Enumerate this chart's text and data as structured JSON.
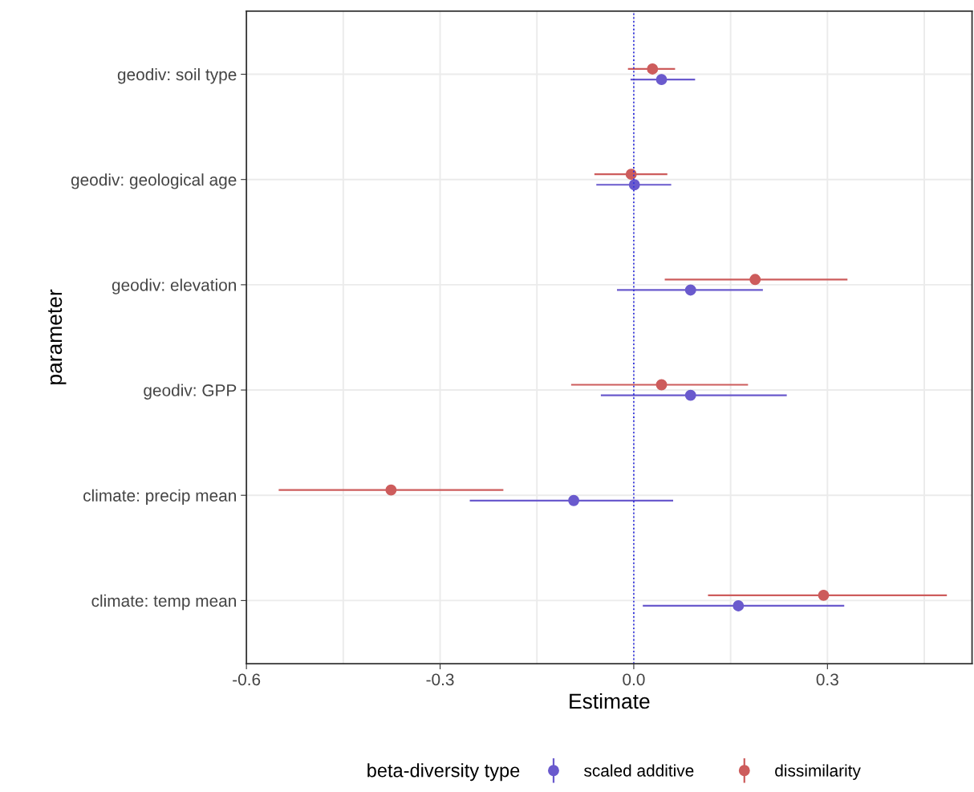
{
  "chart_data": {
    "type": "scatter",
    "orientation": "horizontal",
    "xlabel": "Estimate",
    "ylabel": "parameter",
    "legend_title": "beta-diversity type",
    "legend": "bottom",
    "grid": true,
    "marker": "circle",
    "categories": [
      "geodiv: soil type",
      "geodiv: geological age",
      "geodiv: elevation",
      "geodiv: GPP",
      "climate: precip mean",
      "climate: temp mean"
    ],
    "xlim": [
      -0.6,
      0.524
    ],
    "xticks": [
      -0.6,
      {
        "value": -0.45,
        "label": null
      },
      -0.3,
      {
        "value": -0.15,
        "label": null
      },
      {
        "value": 0,
        "label": "0.0"
      },
      {
        "value": 0.15,
        "label": null
      },
      0.3,
      {
        "value": 0.45,
        "label": null
      }
    ],
    "series": [
      {
        "name": "scaled additive",
        "color": "#6a5acd",
        "values": [
          0.043,
          0.001,
          0.088,
          0.088,
          -0.093,
          0.162
        ],
        "errors": [
          [
            -0.005,
            0.095
          ],
          [
            -0.058,
            0.058
          ],
          [
            -0.026,
            0.2
          ],
          [
            -0.051,
            0.237
          ],
          [
            -0.254,
            0.061
          ],
          [
            0.014,
            0.326
          ]
        ]
      },
      {
        "name": "dissimilarity",
        "color": "#cd5c5c",
        "values": [
          0.029,
          -0.004,
          0.188,
          0.043,
          -0.376,
          0.294
        ],
        "errors": [
          [
            -0.009,
            0.064
          ],
          [
            -0.061,
            0.052
          ],
          [
            0.048,
            0.331
          ],
          [
            -0.097,
            0.177
          ],
          [
            -0.55,
            -0.202
          ],
          [
            0.115,
            0.485
          ]
        ]
      }
    ],
    "ref_lines": [
      {
        "axis": "x",
        "value": 0,
        "color": "#3030e0",
        "line_style": "dotted"
      }
    ]
  }
}
